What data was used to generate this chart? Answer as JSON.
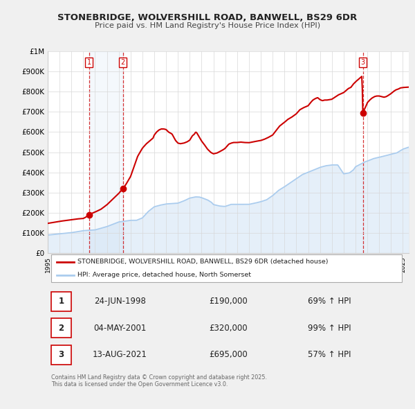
{
  "title": "STONEBRIDGE, WOLVERSHILL ROAD, BANWELL, BS29 6DR",
  "subtitle": "Price paid vs. HM Land Registry's House Price Index (HPI)",
  "background_color": "#f0f0f0",
  "plot_bg_color": "#ffffff",
  "x_min": 1995.0,
  "x_max": 2025.5,
  "y_min": 0,
  "y_max": 1000000,
  "y_ticks": [
    0,
    100000,
    200000,
    300000,
    400000,
    500000,
    600000,
    700000,
    800000,
    900000,
    1000000
  ],
  "y_tick_labels": [
    "£0",
    "£100K",
    "£200K",
    "£300K",
    "£400K",
    "£500K",
    "£600K",
    "£700K",
    "£800K",
    "£900K",
    "£1M"
  ],
  "sale_color": "#cc0000",
  "hpi_color": "#aaccee",
  "sale_label": "STONEBRIDGE, WOLVERSHILL ROAD, BANWELL, BS29 6DR (detached house)",
  "hpi_label": "HPI: Average price, detached house, North Somerset",
  "transactions": [
    {
      "num": 1,
      "date": "24-JUN-1998",
      "price": 190000,
      "pct": "69%",
      "year": 1998.48
    },
    {
      "num": 2,
      "date": "04-MAY-2001",
      "price": 320000,
      "pct": "99%",
      "year": 2001.34
    },
    {
      "num": 3,
      "date": "13-AUG-2021",
      "price": 695000,
      "pct": "57%",
      "year": 2021.62
    }
  ],
  "footer": "Contains HM Land Registry data © Crown copyright and database right 2025.\nThis data is licensed under the Open Government Licence v3.0."
}
